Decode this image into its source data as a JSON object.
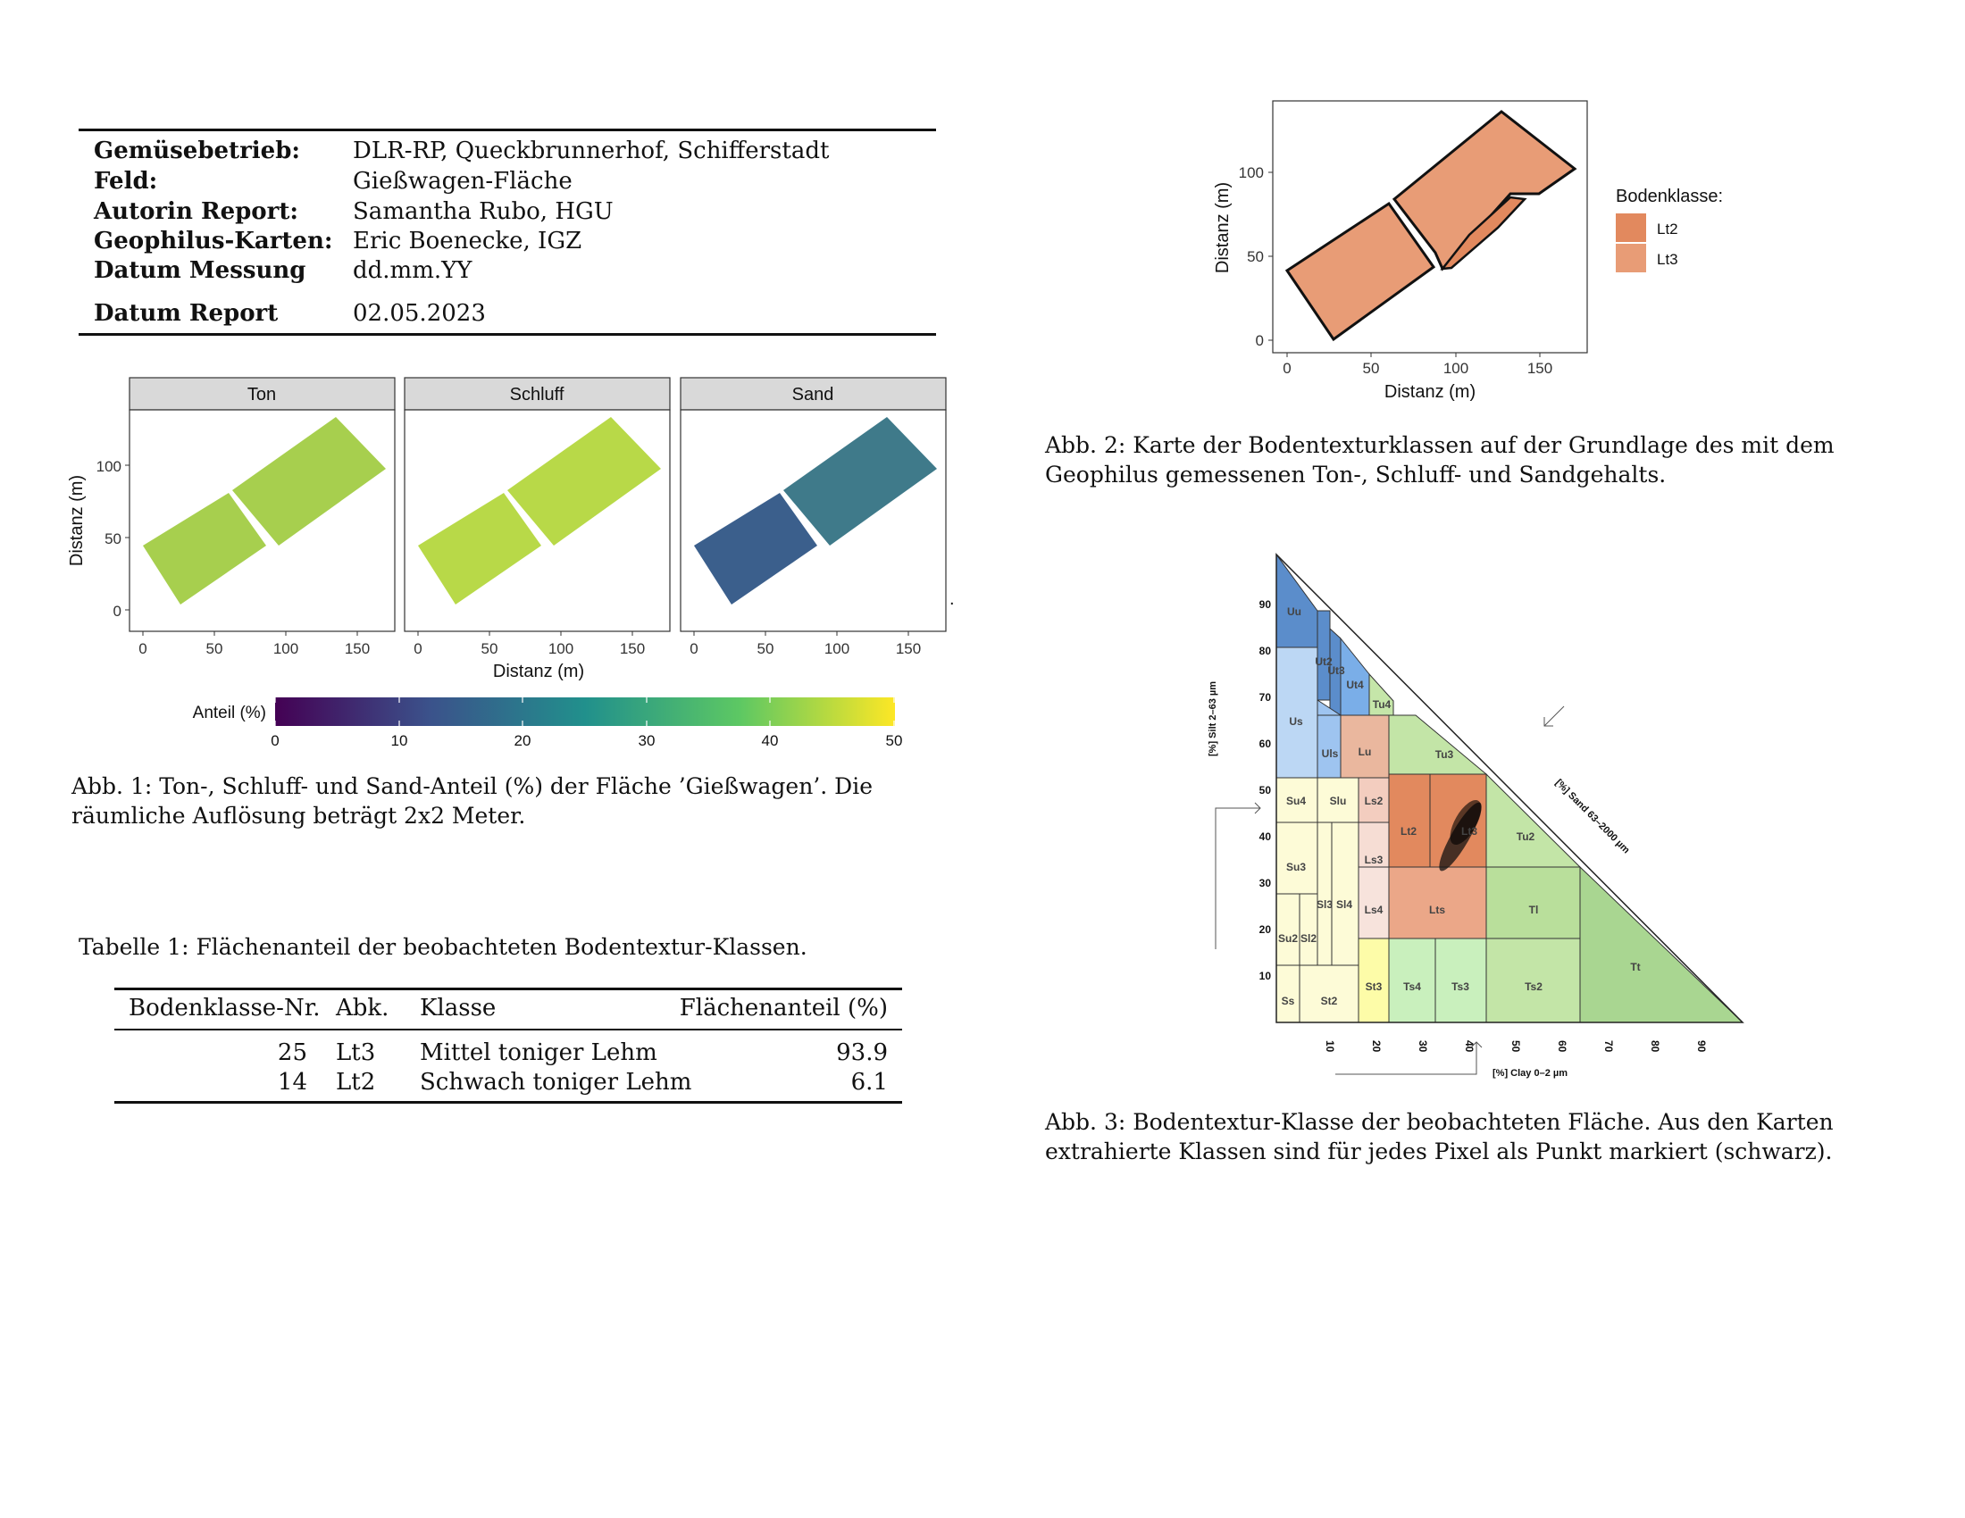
{
  "meta": {
    "rows": [
      {
        "key": "Gemüsebetrieb:",
        "value": "DLR-RP, Queckbrunnerhof, Schifferstadt"
      },
      {
        "key": "Feld:",
        "value": "Gießwagen-Fläche"
      },
      {
        "key": "Autorin Report:",
        "value": "Samantha Rubo, HGU"
      },
      {
        "key": "Geophilus-Karten:",
        "value": "Eric Boenecke, IGZ"
      },
      {
        "key": "Datum Messung",
        "value": "dd.mm.YY"
      },
      {
        "key": "Datum Report",
        "value": "02.05.2023"
      }
    ]
  },
  "fig1": {
    "panels": [
      "Ton",
      "Schluff",
      "Sand"
    ],
    "panel_colors": [
      "#a7cf4e",
      "#b8d948",
      "#3b5f8c"
    ],
    "xlabel": "Distanz (m)",
    "ylabel": "Distanz (m)",
    "xticks": [
      "0",
      "50",
      "100",
      "150"
    ],
    "yticks": [
      "0",
      "50",
      "100"
    ],
    "legend_title": "Anteil (%)",
    "legend_ticks": [
      "0",
      "10",
      "20",
      "30",
      "40",
      "50"
    ],
    "caption": "Abb. 1: Ton-, Schluff- und Sand-Anteil (%) der Fläche ’Gießwagen’. Die räumliche Auflösung beträgt 2x2 Meter."
  },
  "fig2": {
    "xlabel": "Distanz (m)",
    "ylabel": "Distanz (m)",
    "xticks": [
      "0",
      "50",
      "100",
      "150"
    ],
    "yticks": [
      "0",
      "50",
      "100"
    ],
    "legend_title": "Bodenklasse:",
    "legend": [
      {
        "label": "Lt2",
        "color": "#e2895e"
      },
      {
        "label": "Lt3",
        "color": "#e89c76"
      }
    ],
    "caption": "Abb. 2: Karte der Bodentexturklassen auf der Grundlage des mit dem Geophilus gemessenen Ton-, Schluff- und Sandgehalts."
  },
  "fig3": {
    "ylabel": "[%] Silt 2–63 µm",
    "xlabel": "[%] Clay 0–2 µm",
    "hyp_label": "[%] Sand 63–2000 µm",
    "ticks": [
      "10",
      "20",
      "30",
      "40",
      "50",
      "60",
      "70",
      "80",
      "90"
    ],
    "classes": [
      "Uu",
      "Ut2",
      "Ut3",
      "Ut4",
      "Tu4",
      "Us",
      "Uls",
      "Lu",
      "Tu3",
      "Su4",
      "Slu",
      "Ls2",
      "Lt2",
      "Lt3",
      "Tu2",
      "Su3",
      "Ls3",
      "Sl3",
      "Sl4",
      "Ls4",
      "Lts",
      "Tl",
      "Su2",
      "Sl2",
      "St3",
      "Ts4",
      "Ts3",
      "Ts2",
      "Tt",
      "Ss",
      "St2"
    ],
    "caption": "Abb. 3: Bodentextur-Klasse der beobachteten Fläche. Aus den Karten extrahierte Klassen sind für jedes Pixel als Punkt markiert (schwarz)."
  },
  "table": {
    "caption": "Tabelle 1: Flächenanteil der beobachteten Bodentextur-Klassen.",
    "headers": [
      "Bodenklasse-Nr.",
      "Abk.",
      "Klasse",
      "Flächenanteil (%)"
    ],
    "rows": [
      [
        "25",
        "Lt3",
        "Mittel toniger Lehm",
        "93.9"
      ],
      [
        "14",
        "Lt2",
        "Schwach toniger Lehm",
        "6.1"
      ]
    ]
  }
}
